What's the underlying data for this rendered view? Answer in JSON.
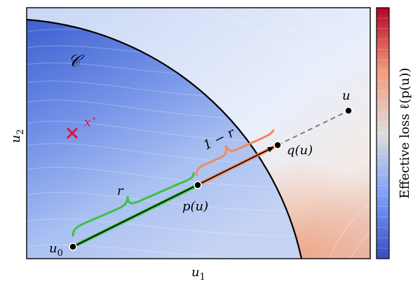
{
  "axes": {
    "xlabel": "u",
    "xlabel_sub": "1",
    "ylabel": "u",
    "ylabel_sub": "2"
  },
  "colorbar": {
    "label": "Effective loss ℓ(p(u))",
    "colormap": "coolwarm",
    "low_color": "#3b4cc0",
    "mid_color": "#dddddd",
    "high_color": "#b40426"
  },
  "set": {
    "label": "𝒞"
  },
  "points": {
    "xstar": {
      "label": "x",
      "sup": "⋆",
      "color": "#dc143c"
    },
    "u0": {
      "label": "u",
      "sub": "0"
    },
    "pu": {
      "label": "p(u)"
    },
    "qu": {
      "label": "q(u)"
    },
    "u": {
      "label": "u"
    }
  },
  "braces": {
    "r": {
      "label": "r",
      "color": "#3ec23e"
    },
    "one_minus_r": {
      "label": "1 − r",
      "color": "#f08a5d"
    }
  },
  "colors": {
    "segment_inner": "#3ec23e",
    "segment_outer": "#f08a5d",
    "arrow": "#000000",
    "dashed_extension": "#808080",
    "boundary": "#000000"
  }
}
